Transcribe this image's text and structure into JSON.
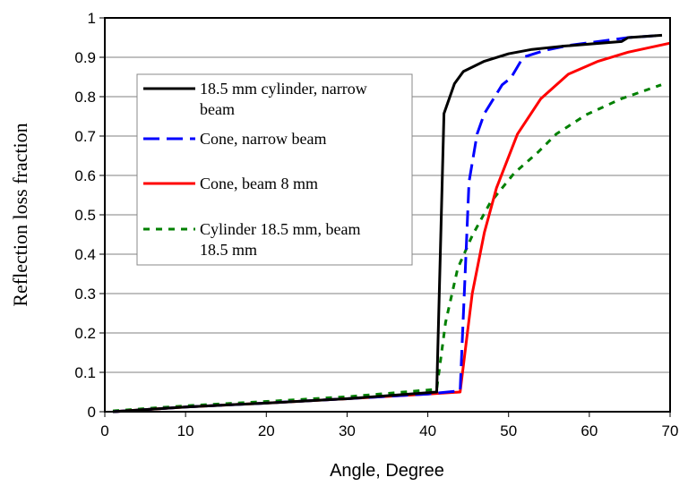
{
  "chart_data": {
    "type": "line",
    "title": "",
    "xlabel": "Angle, Degree",
    "ylabel": "Reflection loss fraction",
    "xlim": [
      0,
      70
    ],
    "ylim": [
      0,
      1
    ],
    "xticks": [
      0,
      10,
      20,
      30,
      40,
      50,
      60,
      70
    ],
    "yticks": [
      "0",
      "0.1",
      "0.2",
      "0.3",
      "0.4",
      "0.5",
      "0.6",
      "0.7",
      "0.8",
      "0.9",
      "1"
    ],
    "grid": "horizontal",
    "legend_position": "upper-left inside",
    "series": [
      {
        "name": "18.5 mm cylinder, narrow beam",
        "color": "#000000",
        "dash": "solid",
        "x": [
          1,
          10,
          20,
          30,
          41.1,
          42.0,
          43.3,
          44.4,
          47,
          50,
          52.9,
          56.6,
          64,
          64.8,
          69
        ],
        "y": [
          0,
          0.012,
          0.022,
          0.033,
          0.05,
          0.757,
          0.833,
          0.864,
          0.89,
          0.909,
          0.92,
          0.928,
          0.94,
          0.95,
          0.956
        ]
      },
      {
        "name": "Cone, narrow beam",
        "color": "#0000FF",
        "dash": "long",
        "x": [
          1,
          10,
          20,
          30,
          40,
          44,
          44.6,
          45.1,
          46.1,
          47,
          49.2,
          50.3,
          51.8,
          54.4,
          57.4,
          64.8,
          69
        ],
        "y": [
          0,
          0.012,
          0.022,
          0.033,
          0.045,
          0.053,
          0.34,
          0.583,
          0.705,
          0.757,
          0.83,
          0.848,
          0.9,
          0.917,
          0.93,
          0.95,
          0.956
        ]
      },
      {
        "name": "Cone, beam 8 mm",
        "color": "#FF0000",
        "dash": "solid",
        "x": [
          1,
          10,
          20,
          30,
          40,
          44,
          45.5,
          47,
          48.5,
          51.1,
          54,
          57.4,
          61.1,
          64.8,
          70
        ],
        "y": [
          0,
          0.012,
          0.022,
          0.033,
          0.045,
          0.05,
          0.3,
          0.455,
          0.568,
          0.705,
          0.795,
          0.857,
          0.89,
          0.913,
          0.936
        ]
      },
      {
        "name": "Cylinder 18.5 mm, beam 18.5 mm",
        "color": "#008000",
        "dash": "dotted",
        "x": [
          1,
          10,
          20,
          30,
          41.1,
          42.2,
          43.7,
          45.5,
          47.7,
          50.7,
          53.7,
          55.9,
          59.6,
          64,
          68.9
        ],
        "y": [
          0.002,
          0.015,
          0.026,
          0.038,
          0.057,
          0.227,
          0.364,
          0.447,
          0.53,
          0.606,
          0.66,
          0.705,
          0.754,
          0.795,
          0.83
        ]
      }
    ]
  }
}
